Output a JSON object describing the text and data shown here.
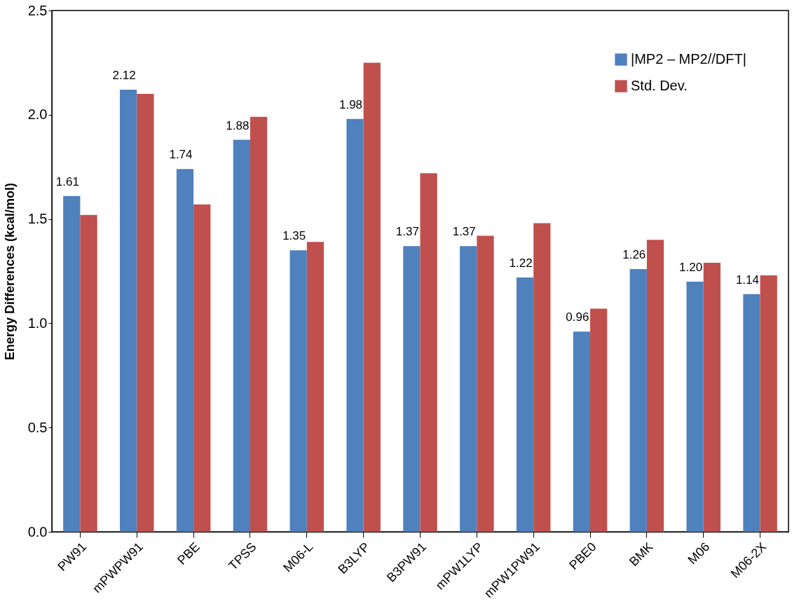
{
  "chart_data": {
    "type": "bar",
    "ylabel": "Energy Differences (kcal/mol)",
    "categories": [
      "PW91",
      "mPWPW91",
      "PBE",
      "TPSS",
      "M06-L",
      "B3LYP",
      "B3PW91",
      "mPW1LYP",
      "mPW1PW91",
      "PBE0",
      "BMK",
      "M06",
      "M06-2X"
    ],
    "series": [
      {
        "name": "|MP2 – MP2//DFT|",
        "color": "#4f81bd",
        "values": [
          1.61,
          2.12,
          1.74,
          1.88,
          1.35,
          1.98,
          1.37,
          1.37,
          1.22,
          0.96,
          1.26,
          1.2,
          1.14
        ],
        "value_labels": [
          "1.61",
          "2.12",
          "1.74",
          "1.88",
          "1.35",
          "1.98",
          "1.37",
          "1.37",
          "1.22",
          "0.96",
          "1.26",
          "1.20",
          "1.14"
        ]
      },
      {
        "name": "Std. Dev.",
        "color": "#c0504d",
        "values": [
          1.52,
          2.1,
          1.57,
          1.99,
          1.39,
          2.25,
          1.72,
          1.42,
          1.48,
          1.07,
          1.4,
          1.29,
          1.23
        ]
      }
    ],
    "ylim": [
      0,
      2.5
    ],
    "yticks": [
      {
        "value": 0,
        "label": "0.0"
      },
      0.5,
      {
        "value": 1,
        "label": "1.0"
      },
      1.5,
      {
        "value": 2,
        "label": "2.0"
      },
      2.5
    ],
    "grid": false,
    "legend": "top right"
  }
}
